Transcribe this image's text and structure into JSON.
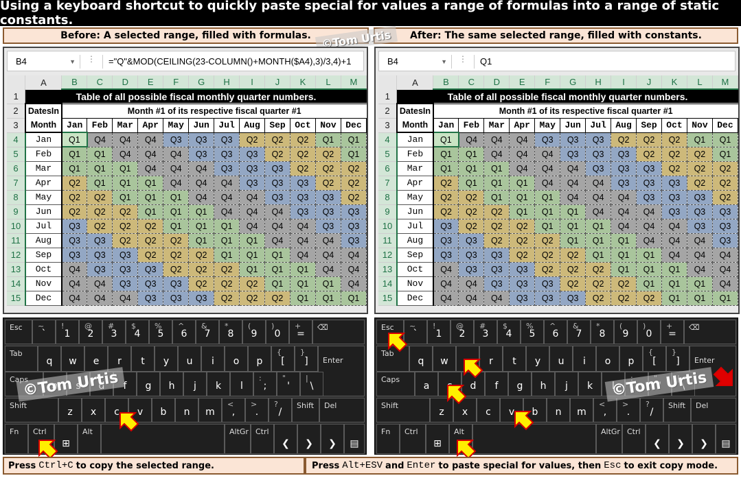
{
  "title": "Using a keyboard shortcut to quickly paste special for values a range of formulas into a range of static constants.",
  "captions": {
    "before": "Before: A selected range, filled with formulas.",
    "after": "After: The same selected range, filled with constants."
  },
  "watermark": "©Tom Urtis",
  "before": {
    "namebox": "B4",
    "formula": "=\"Q\"&MOD(CEILING(23-COLUMN()+MONTH($A4),3)/3,4)+1"
  },
  "after": {
    "namebox": "B4",
    "formula": "Q1"
  },
  "sheet": {
    "col_headers": [
      "A",
      "B",
      "C",
      "D",
      "E",
      "F",
      "G",
      "H",
      "I",
      "J",
      "K",
      "L",
      "M"
    ],
    "table_title": "Table of all possible fiscal monthly quarter numbers.",
    "subtitle": "Month #1 of its respective fiscal quarter #1",
    "datesin": "DatesIn",
    "month_label": "Month",
    "months": [
      "Jan",
      "Feb",
      "Mar",
      "Apr",
      "May",
      "Jun",
      "Jul",
      "Aug",
      "Sep",
      "Oct",
      "Nov",
      "Dec"
    ],
    "rows": [
      [
        "Q1",
        "Q4",
        "Q4",
        "Q4",
        "Q3",
        "Q3",
        "Q3",
        "Q2",
        "Q2",
        "Q2",
        "Q1",
        "Q1"
      ],
      [
        "Q1",
        "Q1",
        "Q4",
        "Q4",
        "Q4",
        "Q3",
        "Q3",
        "Q3",
        "Q2",
        "Q2",
        "Q2",
        "Q1"
      ],
      [
        "Q1",
        "Q1",
        "Q1",
        "Q4",
        "Q4",
        "Q4",
        "Q3",
        "Q3",
        "Q3",
        "Q2",
        "Q2",
        "Q2"
      ],
      [
        "Q2",
        "Q1",
        "Q1",
        "Q1",
        "Q4",
        "Q4",
        "Q4",
        "Q3",
        "Q3",
        "Q3",
        "Q2",
        "Q2"
      ],
      [
        "Q2",
        "Q2",
        "Q1",
        "Q1",
        "Q1",
        "Q4",
        "Q4",
        "Q4",
        "Q3",
        "Q3",
        "Q3",
        "Q2"
      ],
      [
        "Q2",
        "Q2",
        "Q2",
        "Q1",
        "Q1",
        "Q1",
        "Q4",
        "Q4",
        "Q4",
        "Q3",
        "Q3",
        "Q3"
      ],
      [
        "Q3",
        "Q2",
        "Q2",
        "Q2",
        "Q1",
        "Q1",
        "Q1",
        "Q4",
        "Q4",
        "Q4",
        "Q3",
        "Q3"
      ],
      [
        "Q3",
        "Q3",
        "Q2",
        "Q2",
        "Q2",
        "Q1",
        "Q1",
        "Q1",
        "Q4",
        "Q4",
        "Q4",
        "Q3"
      ],
      [
        "Q3",
        "Q3",
        "Q3",
        "Q2",
        "Q2",
        "Q2",
        "Q1",
        "Q1",
        "Q1",
        "Q4",
        "Q4",
        "Q4"
      ],
      [
        "Q4",
        "Q3",
        "Q3",
        "Q3",
        "Q2",
        "Q2",
        "Q2",
        "Q1",
        "Q1",
        "Q1",
        "Q4",
        "Q4"
      ],
      [
        "Q4",
        "Q4",
        "Q3",
        "Q3",
        "Q3",
        "Q2",
        "Q2",
        "Q2",
        "Q1",
        "Q1",
        "Q1",
        "Q4"
      ],
      [
        "Q4",
        "Q4",
        "Q4",
        "Q3",
        "Q3",
        "Q3",
        "Q2",
        "Q2",
        "Q2",
        "Q1",
        "Q1",
        "Q1"
      ]
    ]
  },
  "keyboard": {
    "row1": [
      {
        "k": "Esc"
      },
      {
        "k": "`",
        "s": "~"
      },
      {
        "k": "1",
        "s": "!"
      },
      {
        "k": "2",
        "s": "@"
      },
      {
        "k": "3",
        "s": "#"
      },
      {
        "k": "4",
        "s": "$"
      },
      {
        "k": "5",
        "s": "%"
      },
      {
        "k": "6",
        "s": "^"
      },
      {
        "k": "7",
        "s": "&"
      },
      {
        "k": "8",
        "s": "*"
      },
      {
        "k": "9",
        "s": "("
      },
      {
        "k": "0",
        "s": ")"
      },
      {
        "k": "=",
        "s": "+"
      }
    ],
    "backspace": "⌫",
    "tab": "Tab",
    "row2": [
      {
        "k": "q"
      },
      {
        "k": "w"
      },
      {
        "k": "e"
      },
      {
        "k": "r"
      },
      {
        "k": "t"
      },
      {
        "k": "y"
      },
      {
        "k": "u"
      },
      {
        "k": "i"
      },
      {
        "k": "o"
      },
      {
        "k": "p"
      },
      {
        "k": "[",
        "s": "{"
      },
      {
        "k": "]",
        "s": "}"
      }
    ],
    "enter": "Enter",
    "caps": "Caps",
    "row3": [
      {
        "k": "a"
      },
      {
        "k": "s"
      },
      {
        "k": "d"
      },
      {
        "k": "f"
      },
      {
        "k": "g"
      },
      {
        "k": "h"
      },
      {
        "k": "j"
      },
      {
        "k": "k"
      },
      {
        "k": "l"
      },
      {
        "k": ";",
        "s": ":"
      },
      {
        "k": "'",
        "s": "\""
      },
      {
        "k": "\\",
        "s": "|"
      }
    ],
    "shift": "Shift",
    "row4": [
      {
        "k": "z"
      },
      {
        "k": "x"
      },
      {
        "k": "c"
      },
      {
        "k": "v"
      },
      {
        "k": "b"
      },
      {
        "k": "n"
      },
      {
        "k": "m"
      },
      {
        "k": ",",
        "s": "<"
      },
      {
        "k": ".",
        "s": ">"
      },
      {
        "k": "/",
        "s": "?"
      }
    ],
    "shift_r": "Shift",
    "del": "Del",
    "row5": {
      "fn": "Fn",
      "ctrl": "Ctrl",
      "win": "⊞",
      "alt": "Alt",
      "altgr": "AltGr",
      "ctrl_r": "Ctrl",
      "left": "❮",
      "down": "❯",
      "right": "❯",
      "menu": "▤"
    }
  },
  "footer": {
    "left_a": "Press",
    "left_keys": "Ctrl+C",
    "left_b": "to copy the selected range.",
    "right_a": "Press",
    "right_keys": "Alt+ESV",
    "right_and": "and",
    "right_enter": "Enter",
    "right_b": "to paste special for values, then",
    "right_esc": "Esc",
    "right_c": "to exit copy mode."
  },
  "colors": {
    "Q1": "#a9c59c",
    "Q2": "#cdb97a",
    "Q3": "#93a7c4",
    "Q4": "#a5a5a5",
    "arrow_yellow": "#ffef00",
    "arrow_red": "#e00000"
  }
}
